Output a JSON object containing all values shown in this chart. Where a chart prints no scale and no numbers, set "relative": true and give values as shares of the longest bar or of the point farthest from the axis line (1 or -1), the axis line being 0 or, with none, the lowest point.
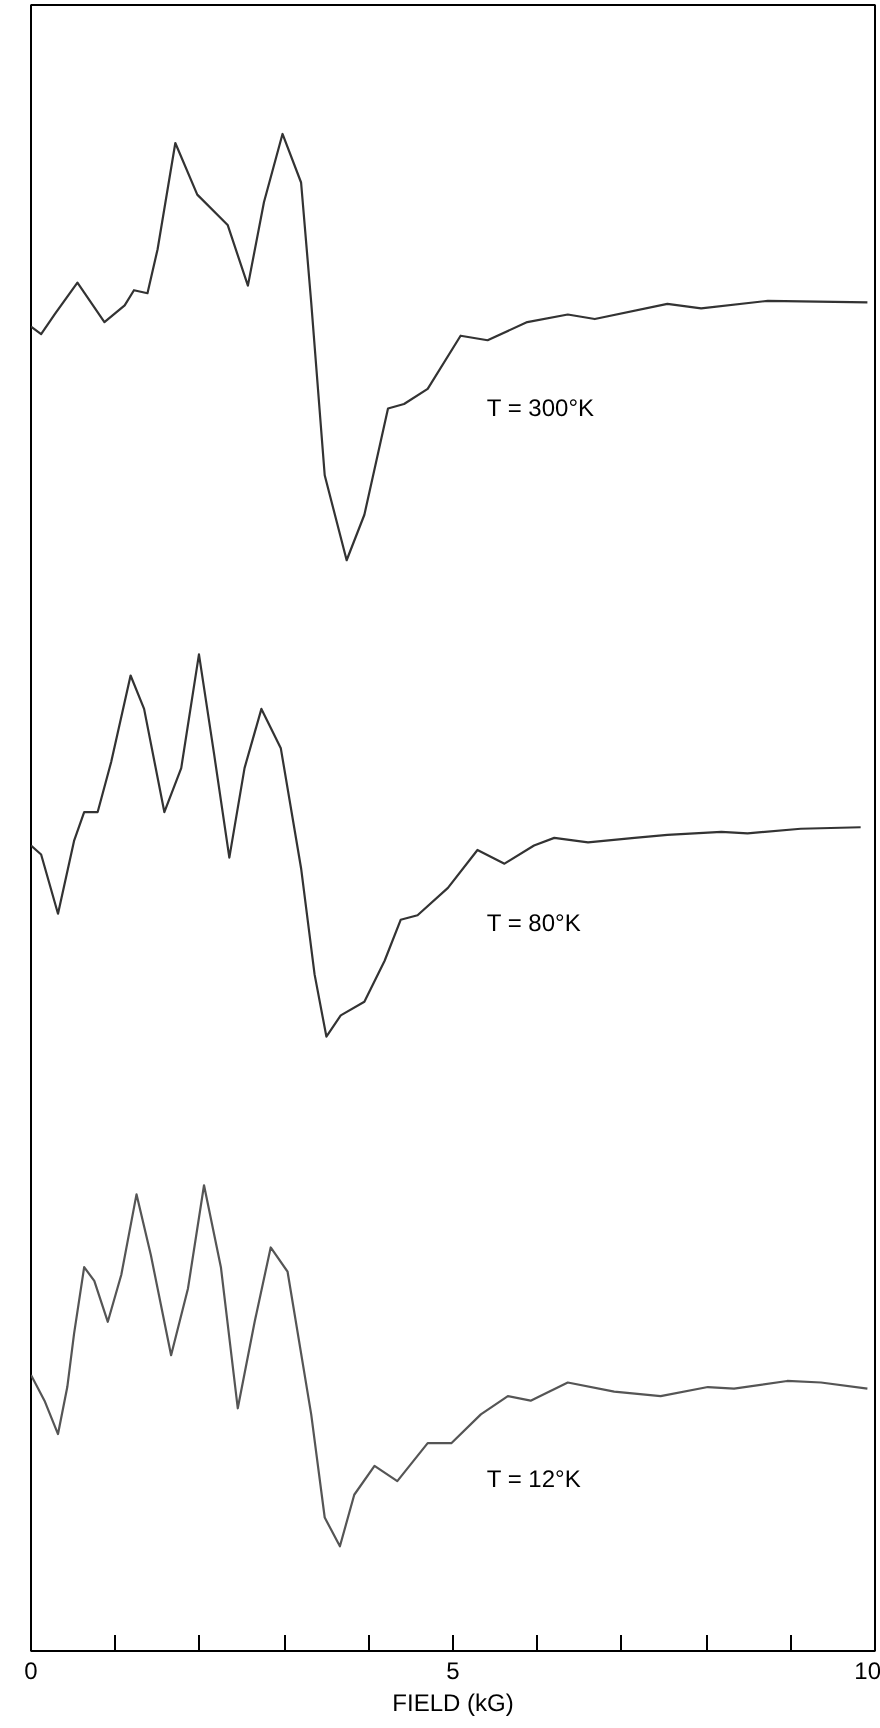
{
  "chart_data": {
    "type": "line",
    "relative": true,
    "xlabel": "FIELD (kG)",
    "xlim": [
      0,
      10
    ],
    "xticks": [
      0,
      {
        "value": 1,
        "label": null
      },
      {
        "value": 2,
        "label": null
      },
      {
        "value": 3,
        "label": null
      },
      {
        "value": 4,
        "label": null
      },
      5,
      {
        "value": 6,
        "label": null
      },
      {
        "value": 7,
        "label": null
      },
      {
        "value": 8,
        "label": null
      },
      {
        "value": 9,
        "label": null
      },
      10
    ],
    "grid": false,
    "marker": "none",
    "line_style": "solid",
    "series": [
      {
        "name": "T = 300°K",
        "color": "#333333",
        "x": [
          0.0,
          0.12,
          0.28,
          0.55,
          0.87,
          1.11,
          1.22,
          1.38,
          1.5,
          1.71,
          1.97,
          2.33,
          2.57,
          2.76,
          2.98,
          3.2,
          3.32,
          3.48,
          3.74,
          3.95,
          4.23,
          4.42,
          4.7,
          5.09,
          5.41,
          5.88,
          6.36,
          6.68,
          7.54,
          7.94,
          8.73,
          9.91
        ],
        "values": [
          0.873,
          0.868,
          0.881,
          0.902,
          0.876,
          0.887,
          0.897,
          0.895,
          0.924,
          0.994,
          0.96,
          0.94,
          0.9,
          0.955,
          1.0,
          0.968,
          0.889,
          0.775,
          0.719,
          0.749,
          0.819,
          0.822,
          0.832,
          0.867,
          0.864,
          0.876,
          0.881,
          0.878,
          0.888,
          0.885,
          0.89,
          0.889
        ]
      },
      {
        "name": "T = 80°K",
        "color": "#333333",
        "x": [
          0.0,
          0.12,
          0.32,
          0.51,
          0.63,
          0.79,
          0.95,
          1.18,
          1.34,
          1.58,
          1.78,
          1.99,
          2.17,
          2.35,
          2.53,
          2.73,
          2.96,
          3.2,
          3.36,
          3.5,
          3.67,
          3.95,
          4.19,
          4.38,
          4.58,
          4.94,
          5.29,
          5.61,
          5.96,
          6.2,
          6.6,
          7.15,
          7.54,
          8.18,
          8.49,
          9.12,
          9.83
        ],
        "values": [
          0.531,
          0.525,
          0.486,
          0.534,
          0.553,
          0.553,
          0.586,
          0.643,
          0.621,
          0.553,
          0.582,
          0.657,
          0.591,
          0.523,
          0.582,
          0.621,
          0.595,
          0.516,
          0.446,
          0.405,
          0.419,
          0.428,
          0.455,
          0.482,
          0.485,
          0.503,
          0.528,
          0.519,
          0.531,
          0.536,
          0.533,
          0.536,
          0.538,
          0.54,
          0.539,
          0.542,
          0.543
        ]
      },
      {
        "name": "T = 12°K",
        "color": "#555555",
        "x": [
          0.0,
          0.16,
          0.32,
          0.43,
          0.51,
          0.63,
          0.75,
          0.91,
          1.07,
          1.25,
          1.42,
          1.66,
          1.86,
          2.05,
          2.25,
          2.45,
          2.65,
          2.84,
          3.04,
          3.32,
          3.48,
          3.66,
          3.83,
          4.07,
          4.34,
          4.7,
          4.98,
          5.33,
          5.65,
          5.92,
          6.36,
          6.91,
          7.46,
          8.02,
          8.33,
          8.96,
          9.36,
          9.91
        ],
        "values": [
          0.182,
          0.165,
          0.143,
          0.174,
          0.209,
          0.253,
          0.244,
          0.217,
          0.248,
          0.301,
          0.261,
          0.195,
          0.239,
          0.307,
          0.253,
          0.16,
          0.217,
          0.266,
          0.25,
          0.156,
          0.088,
          0.069,
          0.103,
          0.122,
          0.112,
          0.137,
          0.137,
          0.156,
          0.168,
          0.165,
          0.177,
          0.171,
          0.168,
          0.174,
          0.173,
          0.178,
          0.177,
          0.173
        ]
      }
    ]
  }
}
